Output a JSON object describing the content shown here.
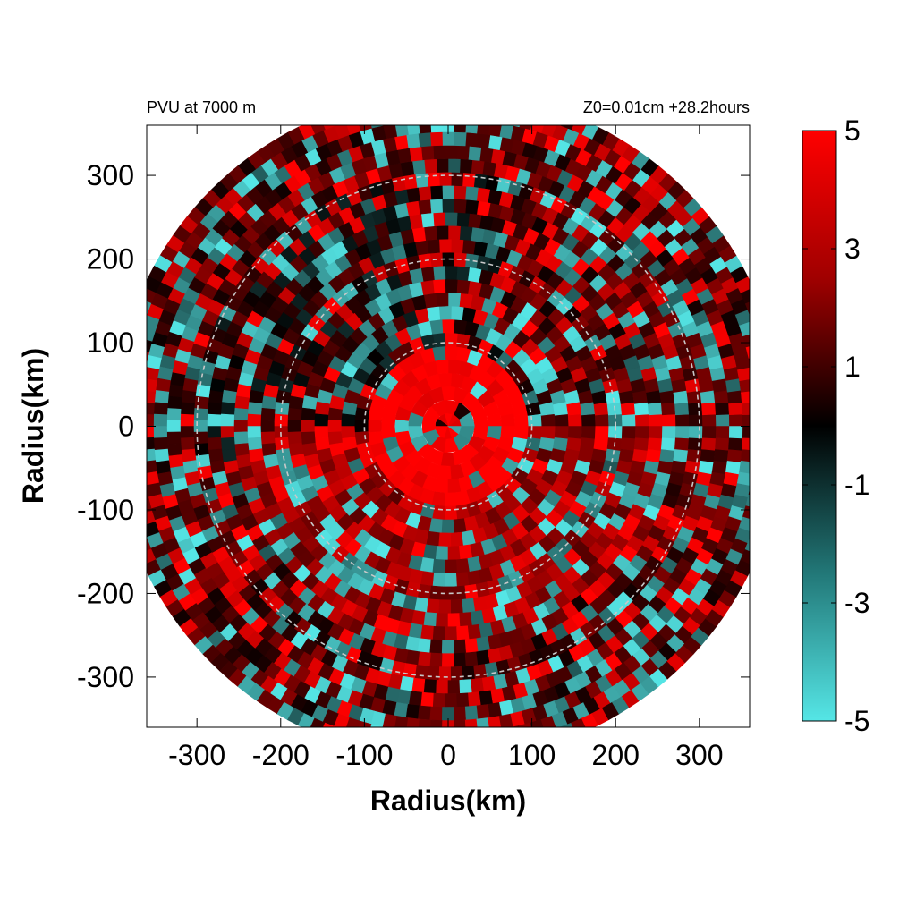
{
  "chart_data": {
    "type": "heatmap",
    "title_left": "PVU at  7000 m",
    "title_right": "Z0=0.01cm  +28.2hours",
    "xlabel": "Radius(km)",
    "ylabel": "Radius(km)",
    "xlim": [
      -360,
      360
    ],
    "ylim": [
      -360,
      360
    ],
    "x_ticks": [
      -300,
      -200,
      -100,
      0,
      100,
      200,
      300
    ],
    "x_tick_labels": [
      "-300",
      "-200",
      "-100",
      "0",
      "100",
      "200",
      "300"
    ],
    "y_ticks": [
      300,
      200,
      100,
      0,
      -100,
      -200,
      -300
    ],
    "y_tick_labels": [
      "300",
      "200",
      "100",
      "0",
      "-100",
      "-200",
      "-300"
    ],
    "range_rings_km": [
      100,
      200,
      300
    ],
    "data_domain_radius_km": 400,
    "colorbar": {
      "range": [
        -5,
        5
      ],
      "ticks": [
        5,
        3,
        1,
        -1,
        -3,
        -5
      ],
      "tick_labels": [
        "5",
        "3",
        "1",
        "-1",
        "-3",
        "-5"
      ],
      "colors": {
        "high": "#ff0000",
        "mid": "#000000",
        "low": "#55e6e6"
      }
    }
  }
}
